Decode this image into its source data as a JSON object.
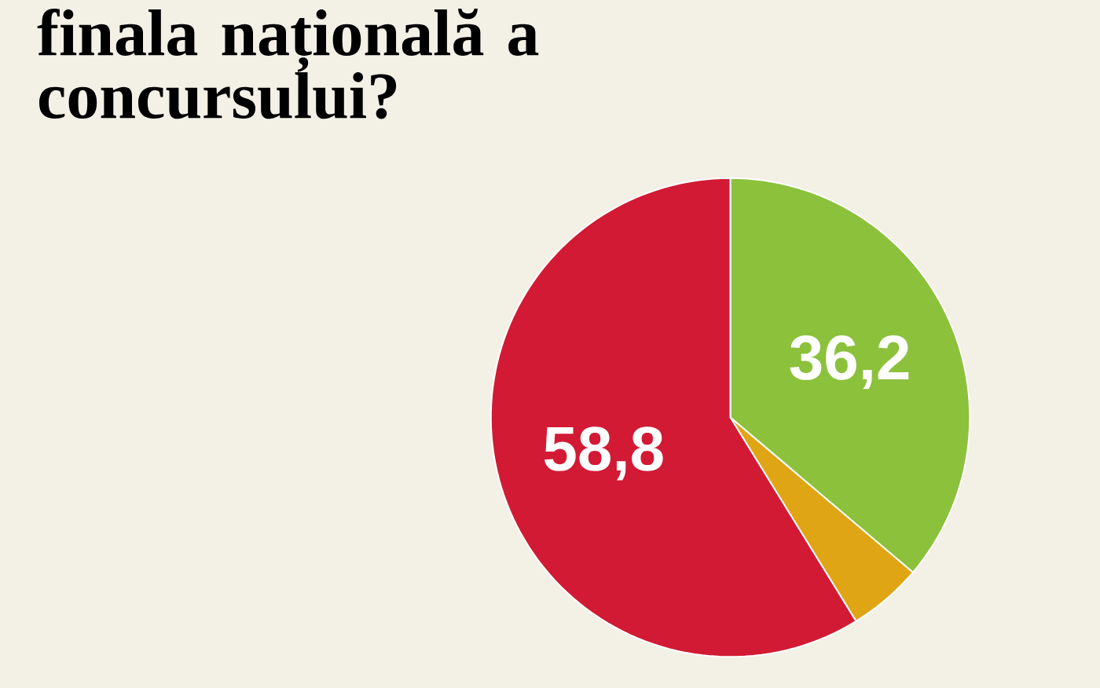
{
  "chart_data": {
    "type": "pie",
    "title": "finala națională a concursului?",
    "categories": [
      null,
      null,
      null
    ],
    "values": [
      36.2,
      5.0,
      58.8
    ],
    "colors": [
      "#8cc13c",
      "#e0a514",
      "#d21a34"
    ],
    "value_labels": [
      "36,2",
      null,
      "58,8"
    ]
  }
}
